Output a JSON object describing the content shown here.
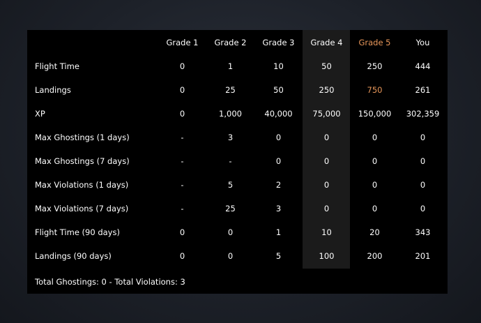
{
  "columns": [
    "Grade 1",
    "Grade 2",
    "Grade 3",
    "Grade 4",
    "Grade 5",
    "You"
  ],
  "rows": [
    {
      "label": "Flight Time",
      "values": [
        "0",
        "1",
        "10",
        "50",
        "250",
        "444"
      ]
    },
    {
      "label": "Landings",
      "values": [
        "0",
        "25",
        "50",
        "250",
        "750",
        "261"
      ]
    },
    {
      "label": "XP",
      "values": [
        "0",
        "1,000",
        "40,000",
        "75,000",
        "150,000",
        "302,359"
      ]
    },
    {
      "label": "Max Ghostings (1 days)",
      "values": [
        "-",
        "3",
        "0",
        "0",
        "0",
        "0"
      ]
    },
    {
      "label": "Max Ghostings (7 days)",
      "values": [
        "-",
        "-",
        "0",
        "0",
        "0",
        "0"
      ]
    },
    {
      "label": "Max Violations (1 days)",
      "values": [
        "-",
        "5",
        "2",
        "0",
        "0",
        "0"
      ]
    },
    {
      "label": "Max Violations (7 days)",
      "values": [
        "-",
        "25",
        "3",
        "0",
        "0",
        "0"
      ]
    },
    {
      "label": "Flight Time (90 days)",
      "values": [
        "0",
        "0",
        "1",
        "10",
        "20",
        "343"
      ]
    },
    {
      "label": "Landings (90 days)",
      "values": [
        "0",
        "0",
        "5",
        "100",
        "200",
        "201"
      ]
    }
  ],
  "footer": "Total Ghostings: 0 - Total Violations: 3",
  "colors": {
    "accent": "#e9975a",
    "panel": "#000000",
    "highlight_column": "#1b1b1b"
  }
}
